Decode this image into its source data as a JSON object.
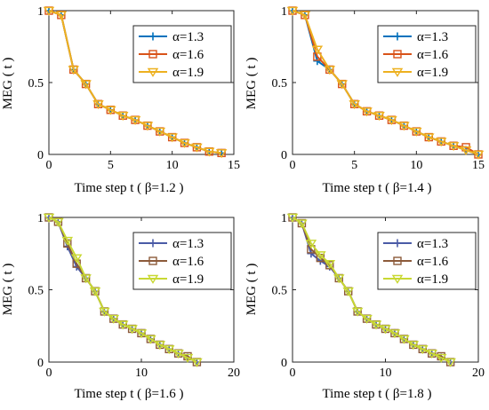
{
  "figure": {
    "background": "#ffffff"
  },
  "chart_data": [
    {
      "type": "line",
      "panel": "top-left",
      "xlabel": "Time step t ( β=1.2 )",
      "ylabel": "MEG ( t )",
      "xlim": [
        0,
        15
      ],
      "ylim": [
        0,
        1
      ],
      "xticks": [
        "0",
        "5",
        "10",
        "15"
      ],
      "yticks": [
        "0",
        "0.5",
        "1"
      ],
      "grid": false,
      "legend_position": "top-right",
      "series": [
        {
          "name": "α=1.3",
          "color": "#0072BD",
          "marker": "plus",
          "x": [
            0,
            1,
            2,
            3,
            4,
            5,
            6,
            7,
            8,
            9,
            10,
            11,
            12,
            13,
            14
          ],
          "y": [
            1,
            0.97,
            0.59,
            0.49,
            0.35,
            0.31,
            0.27,
            0.24,
            0.2,
            0.16,
            0.12,
            0.08,
            0.05,
            0.02,
            0.01
          ]
        },
        {
          "name": "α=1.6",
          "color": "#D95319",
          "marker": "square",
          "x": [
            0,
            1,
            2,
            3,
            4,
            5,
            6,
            7,
            8,
            9,
            10,
            11,
            12,
            13,
            14
          ],
          "y": [
            1,
            0.97,
            0.59,
            0.49,
            0.35,
            0.31,
            0.27,
            0.24,
            0.2,
            0.16,
            0.12,
            0.08,
            0.05,
            0.02,
            0.01
          ]
        },
        {
          "name": "α=1.9",
          "color": "#EDB120",
          "marker": "triangle-down",
          "x": [
            0,
            1,
            2,
            3,
            4,
            5,
            6,
            7,
            8,
            9,
            10,
            11,
            12,
            13,
            14
          ],
          "y": [
            1,
            0.97,
            0.59,
            0.49,
            0.35,
            0.31,
            0.27,
            0.24,
            0.2,
            0.16,
            0.12,
            0.08,
            0.05,
            0.02,
            0.01
          ]
        }
      ]
    },
    {
      "type": "line",
      "panel": "top-right",
      "xlabel": "Time step t ( β=1.4 )",
      "ylabel": "MEG ( t )",
      "xlim": [
        0,
        15
      ],
      "ylim": [
        0,
        1
      ],
      "xticks": [
        "0",
        "5",
        "10",
        "15"
      ],
      "yticks": [
        "0",
        "0.5",
        "1"
      ],
      "grid": false,
      "legend_position": "top-right",
      "series": [
        {
          "name": "α=1.3",
          "color": "#0072BD",
          "marker": "plus",
          "x": [
            0,
            1,
            2,
            3,
            4,
            5,
            6,
            7,
            8,
            9,
            10,
            11,
            12,
            13,
            14,
            15
          ],
          "y": [
            1,
            0.97,
            0.65,
            0.59,
            0.49,
            0.35,
            0.3,
            0.27,
            0.24,
            0.2,
            0.16,
            0.12,
            0.09,
            0.06,
            0.03,
            0.0
          ]
        },
        {
          "name": "α=1.6",
          "color": "#D95319",
          "marker": "square",
          "x": [
            0,
            1,
            2,
            3,
            4,
            5,
            6,
            7,
            8,
            9,
            10,
            11,
            12,
            13,
            14,
            15
          ],
          "y": [
            1,
            0.97,
            0.68,
            0.59,
            0.49,
            0.35,
            0.3,
            0.27,
            0.24,
            0.2,
            0.16,
            0.12,
            0.09,
            0.06,
            0.05,
            0.0
          ]
        },
        {
          "name": "α=1.9",
          "color": "#EDB120",
          "marker": "triangle-down",
          "x": [
            0,
            1,
            2,
            3,
            4,
            5,
            6,
            7,
            8,
            9,
            10,
            11,
            12,
            13,
            14,
            15
          ],
          "y": [
            1,
            0.97,
            0.73,
            0.59,
            0.49,
            0.35,
            0.3,
            0.27,
            0.24,
            0.2,
            0.16,
            0.12,
            0.09,
            0.06,
            0.03,
            0.0
          ]
        }
      ]
    },
    {
      "type": "line",
      "panel": "bottom-left",
      "xlabel": "Time step t ( β=1.6 )",
      "ylabel": "MEG ( t )",
      "xlim": [
        0,
        20
      ],
      "ylim": [
        0,
        1
      ],
      "xticks": [
        "0",
        "10",
        "20"
      ],
      "yticks": [
        "0",
        "0.5",
        "1"
      ],
      "grid": false,
      "legend_position": "top-right",
      "series": [
        {
          "name": "α=1.3",
          "color": "#4A5BA6",
          "marker": "plus",
          "x": [
            0,
            1,
            2,
            3,
            4,
            5,
            6,
            7,
            8,
            9,
            10,
            11,
            12,
            13,
            14,
            15,
            16
          ],
          "y": [
            1,
            0.97,
            0.8,
            0.66,
            0.58,
            0.49,
            0.35,
            0.3,
            0.26,
            0.23,
            0.2,
            0.16,
            0.12,
            0.09,
            0.06,
            0.03,
            0.0
          ]
        },
        {
          "name": "α=1.6",
          "color": "#8C5A3A",
          "marker": "square",
          "x": [
            0,
            1,
            2,
            3,
            4,
            5,
            6,
            7,
            8,
            9,
            10,
            11,
            12,
            13,
            14,
            15,
            16
          ],
          "y": [
            1,
            0.97,
            0.82,
            0.68,
            0.58,
            0.49,
            0.35,
            0.3,
            0.26,
            0.23,
            0.2,
            0.16,
            0.12,
            0.09,
            0.06,
            0.04,
            0.0
          ]
        },
        {
          "name": "α=1.9",
          "color": "#C8D832",
          "marker": "triangle-down",
          "x": [
            0,
            1,
            2,
            3,
            4,
            5,
            6,
            7,
            8,
            9,
            10,
            11,
            12,
            13,
            14,
            15,
            16
          ],
          "y": [
            1,
            0.97,
            0.84,
            0.72,
            0.58,
            0.49,
            0.35,
            0.3,
            0.26,
            0.23,
            0.2,
            0.16,
            0.12,
            0.09,
            0.06,
            0.03,
            0.0
          ]
        }
      ]
    },
    {
      "type": "line",
      "panel": "bottom-right",
      "xlabel": "Time step t ( β=1.8 )",
      "ylabel": "MEG ( t )",
      "xlim": [
        0,
        20
      ],
      "ylim": [
        0,
        1
      ],
      "xticks": [
        "0",
        "10",
        "20"
      ],
      "yticks": [
        "0",
        "0.5",
        "1"
      ],
      "grid": false,
      "legend_position": "top-right",
      "series": [
        {
          "name": "α=1.3",
          "color": "#4A5BA6",
          "marker": "plus",
          "x": [
            0,
            1,
            2,
            3,
            4,
            5,
            6,
            7,
            8,
            9,
            10,
            11,
            12,
            13,
            14,
            15,
            16,
            17
          ],
          "y": [
            1,
            0.96,
            0.75,
            0.7,
            0.66,
            0.58,
            0.49,
            0.35,
            0.3,
            0.26,
            0.23,
            0.2,
            0.16,
            0.12,
            0.09,
            0.06,
            0.03,
            0.0
          ]
        },
        {
          "name": "α=1.6",
          "color": "#8C5A3A",
          "marker": "square",
          "x": [
            0,
            1,
            2,
            3,
            4,
            5,
            6,
            7,
            8,
            9,
            10,
            11,
            12,
            13,
            14,
            15,
            16,
            17
          ],
          "y": [
            1,
            0.96,
            0.78,
            0.72,
            0.67,
            0.58,
            0.49,
            0.35,
            0.3,
            0.26,
            0.23,
            0.2,
            0.16,
            0.12,
            0.09,
            0.06,
            0.04,
            0.0
          ]
        },
        {
          "name": "α=1.9",
          "color": "#C8D832",
          "marker": "triangle-down",
          "x": [
            0,
            1,
            2,
            3,
            4,
            5,
            6,
            7,
            8,
            9,
            10,
            11,
            12,
            13,
            14,
            15,
            16,
            17
          ],
          "y": [
            1,
            0.96,
            0.82,
            0.74,
            0.68,
            0.58,
            0.49,
            0.35,
            0.3,
            0.26,
            0.23,
            0.2,
            0.16,
            0.12,
            0.09,
            0.06,
            0.03,
            0.0
          ]
        }
      ]
    }
  ]
}
